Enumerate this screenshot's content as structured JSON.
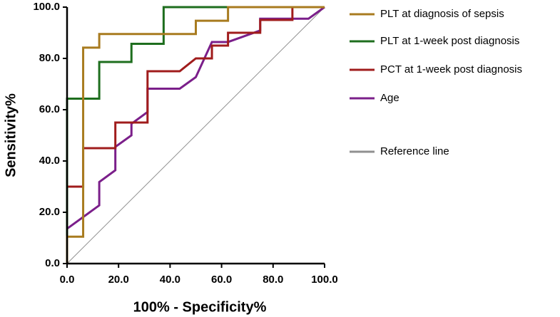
{
  "chart_data": {
    "type": "line",
    "xlabel": "100% - Specificity%",
    "ylabel": "Sensitivity%",
    "xlim": [
      0,
      100
    ],
    "ylim": [
      0,
      100
    ],
    "xticks": [
      {
        "value": 0,
        "label": "0.0"
      },
      {
        "value": 20,
        "label": "20.0"
      },
      {
        "value": 40,
        "label": "40.0"
      },
      {
        "value": 60,
        "label": "60.0"
      },
      {
        "value": 80,
        "label": "80.0"
      },
      {
        "value": 100,
        "label": "100.0"
      }
    ],
    "yticks": [
      {
        "value": 0,
        "label": "0.0"
      },
      {
        "value": 20,
        "label": "20.0"
      },
      {
        "value": 40,
        "label": "40.0"
      },
      {
        "value": 60,
        "label": "60.0"
      },
      {
        "value": 80,
        "label": "80.0"
      },
      {
        "value": 100,
        "label": "100.0"
      }
    ],
    "series": [
      {
        "name": "PLT at diagnosis of sepsis",
        "color": "#a87b1f",
        "x": [
          0,
          0,
          6.25,
          6.25,
          12.5,
          12.5,
          50,
          50,
          62.5,
          62.5,
          100
        ],
        "values": [
          0,
          10.5,
          10.5,
          84.2,
          84.2,
          89.5,
          89.5,
          94.7,
          94.7,
          100,
          100
        ]
      },
      {
        "name": "PLT  at 1-week post diagnosis",
        "color": "#1e6e1e",
        "x": [
          0,
          0,
          12.5,
          12.5,
          25,
          25,
          37.5,
          37.5,
          100
        ],
        "values": [
          0,
          64.3,
          64.3,
          78.6,
          78.6,
          85.7,
          85.7,
          100,
          100
        ]
      },
      {
        "name": "PCT at 1-week post diagnosis",
        "color": "#a01c1c",
        "x": [
          0,
          0,
          6.25,
          6.25,
          18.75,
          18.75,
          31.25,
          31.25,
          43.75,
          50,
          56.25,
          56.25,
          62.5,
          62.5,
          75,
          75,
          87.5,
          87.5,
          100
        ],
        "values": [
          0,
          30,
          30,
          45,
          45,
          55,
          55,
          75,
          75,
          80,
          80,
          85,
          85,
          90,
          90,
          95,
          95,
          100,
          100
        ]
      },
      {
        "name": "Age",
        "color": "#7b1f8a",
        "x": [
          0,
          12.5,
          12.5,
          18.75,
          18.75,
          25,
          25,
          31.25,
          31.25,
          43.75,
          50,
          56.25,
          62.5,
          75,
          75,
          93.75,
          100
        ],
        "values": [
          13.6,
          22.7,
          31.8,
          36.4,
          45.5,
          50,
          54.5,
          59.1,
          68.2,
          68.2,
          72.7,
          86.4,
          86.4,
          90.9,
          95.5,
          95.5,
          100
        ]
      },
      {
        "name": "Reference line",
        "color": "#909090",
        "width": 1,
        "x": [
          0,
          100
        ],
        "values": [
          0,
          100
        ]
      }
    ]
  }
}
